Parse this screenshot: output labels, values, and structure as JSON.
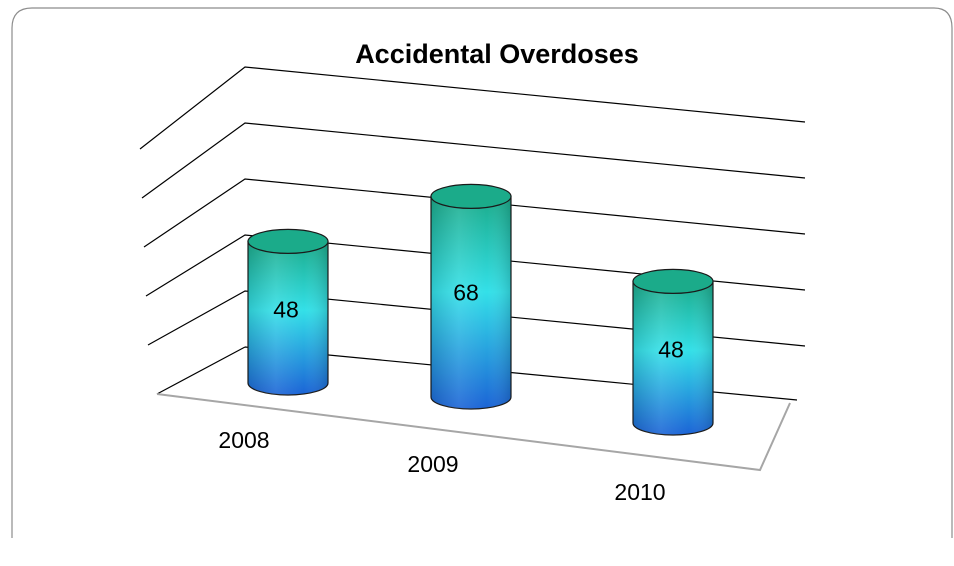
{
  "chart_data": {
    "type": "bar",
    "style": "3d-cylinder",
    "title": "Accidental Overdoses",
    "xlabel": "",
    "ylabel": "",
    "categories": [
      "2008",
      "2009",
      "2010"
    ],
    "series": [
      {
        "values": [
          48,
          68,
          48
        ]
      }
    ],
    "data_labels": [
      "48",
      "68",
      "48"
    ],
    "ylim": [
      0,
      100
    ],
    "gridlines": [
      20,
      40,
      60,
      80,
      100
    ],
    "grid": true,
    "legend": "none",
    "colors": {
      "bar_top": "#1bab8a",
      "bar_mid": "#33e0e8",
      "bar_bottom": "#1b63d6",
      "gridline": "#000000",
      "floor": "#a6a6a6",
      "border": "#7f7f7f"
    }
  }
}
